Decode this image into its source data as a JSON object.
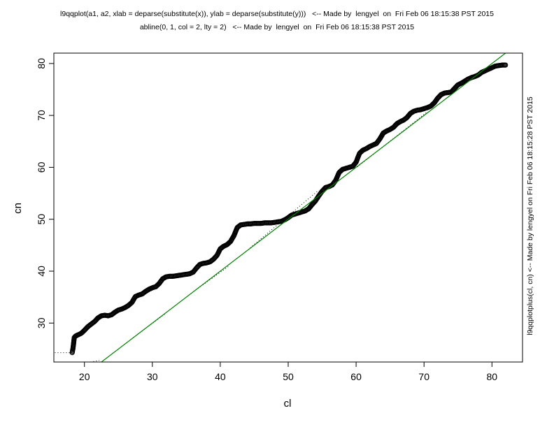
{
  "header": {
    "line1": "l9qqplot(a1, a2, xlab = deparse(substitute(x)), ylab = deparse(substitute(y)))   <-- Made by  lengyel  on  Fri Feb 06 18:15:38 PST 2015",
    "line2": "abline(0, 1, col = 2, lty = 2)   <-- Made by  lengyel  on  Fri Feb 06 18:15:38 PST 2015"
  },
  "side_note": "l9qqplotplus(cl, cn)   <-- Made by  lengyel  on  Fri Feb 06 18:15:28 PST 2015",
  "chart_data": {
    "type": "scatter",
    "title": "",
    "xlabel": "cl",
    "ylabel": "cn",
    "xlim": [
      15.5,
      84.5
    ],
    "ylim": [
      22.5,
      82.0
    ],
    "xticks": [
      20,
      30,
      40,
      50,
      60,
      70,
      80
    ],
    "yticks": [
      30,
      40,
      50,
      60,
      70,
      80
    ],
    "grid": false,
    "colors": {
      "points": "#000000",
      "reference_line": "#008000",
      "dotted": "#000000"
    },
    "series": [
      {
        "marker": "open-circle",
        "x": [
          18.2,
          18.3,
          18.4,
          18.5,
          18.7,
          19.0,
          19.5,
          20.0,
          20.5,
          21.0,
          21.5,
          22.0,
          22.5,
          23.0,
          23.5,
          24.0,
          24.5,
          25.0,
          25.5,
          26.0,
          26.5,
          27.0,
          27.5,
          28.0,
          28.5,
          29.0,
          29.5,
          30.0,
          30.5,
          31.0,
          31.5,
          32.0,
          32.5,
          33.0,
          33.5,
          34.0,
          34.5,
          35.0,
          35.5,
          36.0,
          36.5,
          37.0,
          37.5,
          38.0,
          38.5,
          39.0,
          39.5,
          40.0,
          40.5,
          41.0,
          41.5,
          42.0,
          42.5,
          43.0,
          43.5,
          44.0,
          44.5,
          45.0,
          45.5,
          46.0,
          46.5,
          47.0,
          47.5,
          48.0,
          48.5,
          49.0,
          49.5,
          50.0,
          50.5,
          51.0,
          51.5,
          52.0,
          52.5,
          53.0,
          53.5,
          54.0,
          54.5,
          55.0,
          55.5,
          56.0,
          56.5,
          57.0,
          57.5,
          58.0,
          58.5,
          59.0,
          59.5,
          60.0,
          60.5,
          61.0,
          61.5,
          62.0,
          62.5,
          63.0,
          63.5,
          64.0,
          64.5,
          65.0,
          65.5,
          66.0,
          66.5,
          67.0,
          67.5,
          68.0,
          68.5,
          69.0,
          69.5,
          70.0,
          70.5,
          71.0,
          71.5,
          72.0,
          72.5,
          73.0,
          73.5,
          74.0,
          74.5,
          75.0,
          75.5,
          76.0,
          76.5,
          77.0,
          77.5,
          78.0,
          78.5,
          79.0,
          79.5,
          80.0,
          80.5,
          81.0,
          81.5,
          82.0
        ],
        "y": [
          24.3,
          25.0,
          26.0,
          27.2,
          27.5,
          27.7,
          28.0,
          28.6,
          29.3,
          29.8,
          30.3,
          31.0,
          31.4,
          31.5,
          31.4,
          31.6,
          32.1,
          32.5,
          32.7,
          33.0,
          33.4,
          34.0,
          35.1,
          35.4,
          35.6,
          36.1,
          36.5,
          36.8,
          37.0,
          37.6,
          38.5,
          38.9,
          39.0,
          39.0,
          39.1,
          39.2,
          39.3,
          39.4,
          39.5,
          39.8,
          40.6,
          41.3,
          41.5,
          41.6,
          41.8,
          42.3,
          43.0,
          44.3,
          44.8,
          45.1,
          45.7,
          46.8,
          48.4,
          48.9,
          49.0,
          49.1,
          49.1,
          49.2,
          49.2,
          49.2,
          49.3,
          49.3,
          49.3,
          49.4,
          49.5,
          49.6,
          49.9,
          50.3,
          50.8,
          51.0,
          51.2,
          51.4,
          51.6,
          52.0,
          52.8,
          53.5,
          54.5,
          55.4,
          56.1,
          56.3,
          56.6,
          57.5,
          59.0,
          59.6,
          59.8,
          60.0,
          60.2,
          61.0,
          62.7,
          63.3,
          63.6,
          64.0,
          64.3,
          64.6,
          65.5,
          66.6,
          67.0,
          67.3,
          67.7,
          68.4,
          68.8,
          69.1,
          69.6,
          70.4,
          70.8,
          71.0,
          71.1,
          71.3,
          71.5,
          71.8,
          72.4,
          73.3,
          74.0,
          74.3,
          74.4,
          74.5,
          75.2,
          75.9,
          76.2,
          76.6,
          77.0,
          77.3,
          77.5,
          77.8,
          78.3,
          78.6,
          78.9,
          79.2,
          79.5,
          79.6,
          79.7,
          79.7
        ]
      },
      {
        "marker": "dotted-line",
        "segments": [
          [
            14.0,
            24.3,
            18.2,
            24.3
          ],
          [
            20.5,
            22.4,
            22.2,
            22.8
          ],
          [
            26.8,
            26.8,
            32.0,
            31.9
          ],
          [
            36.4,
            36.4,
            41.2,
            40.9
          ],
          [
            44.4,
            44.5,
            54.5,
            55.6
          ],
          [
            60.2,
            60.1,
            70.4,
            70.6
          ]
        ]
      }
    ],
    "reference_line": {
      "intercept": 0,
      "slope": 1,
      "from": 18.2,
      "to": 82.6
    }
  }
}
